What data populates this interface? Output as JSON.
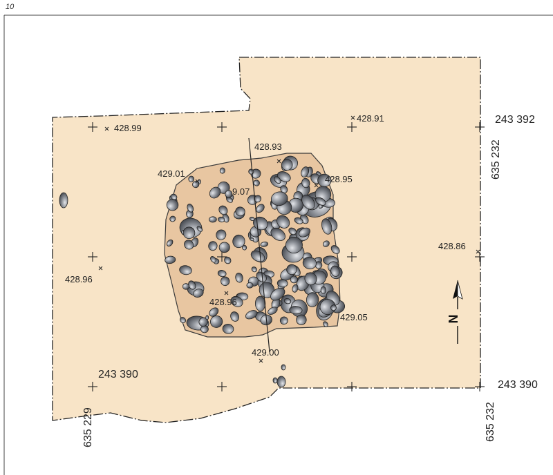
{
  "page_number": "10",
  "colors": {
    "trench_fill": "#f8e4c7",
    "feature_fill": "#e8c6a1",
    "stone_dark": "#3a3d44",
    "stone_light": "#d7d9de",
    "outline": "#222222"
  },
  "elevations": {
    "e1": "428.99",
    "e2": "428.91",
    "e3": "428.93",
    "e4": "429.01",
    "e5": "428.95",
    "e6": "9.07",
    "e7": "428.86",
    "e8": "428.96",
    "e9": "428.96",
    "e10": "429.05",
    "e11": "429.00"
  },
  "coordinates": {
    "top_right_x": "243 392",
    "right_y_top": "635 232",
    "bottom_left_x": "243 390",
    "bottom_left_y": "635 229",
    "bottom_right_x": "243 390",
    "bottom_right_y": "635 232"
  },
  "north_arrow": {
    "label": "N",
    "icon": "north-arrow-icon"
  },
  "stone_counts": {
    "west_half_seed": 17,
    "east_half_seed": 41
  }
}
